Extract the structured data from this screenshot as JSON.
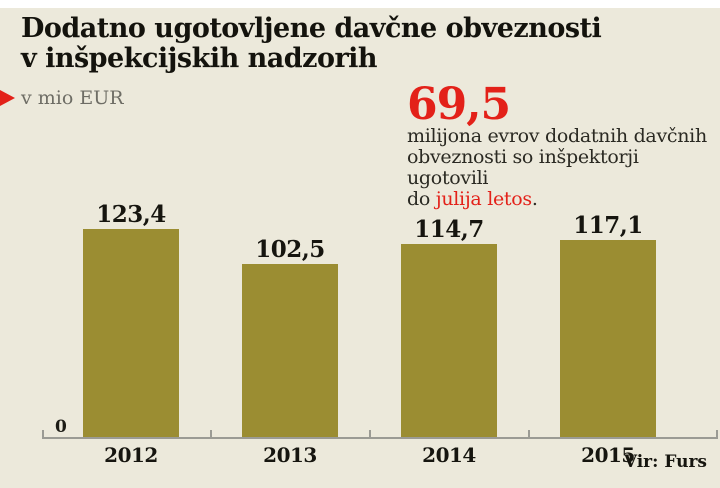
{
  "header": {
    "title_line1": "Dodatno ugotovljene davčne obveznosti",
    "title_line2": "v inšpekcijskih nadzorih",
    "unit_label": "v mio EUR"
  },
  "annotation": {
    "big_number": "69,5",
    "line1": "milijona evrov dodatnih davčnih",
    "line2": "obveznosti so inšpektorji ugotovili",
    "line3_prefix": "do ",
    "line3_highlight": "julija letos",
    "line3_suffix": "."
  },
  "chart_data": {
    "type": "bar",
    "title": "Dodatno ugotovljene davčne obveznosti v inšpekcijskih nadzorih",
    "unit": "v mio EUR",
    "categories": [
      "2012",
      "2013",
      "2014",
      "2015"
    ],
    "values": [
      123.4,
      102.5,
      114.7,
      117.1
    ],
    "value_labels": [
      "123,4",
      "102,5",
      "114,7",
      "117,1"
    ],
    "origin_label": "0",
    "xlabel": "",
    "ylabel": "v mio EUR",
    "ylim": [
      0,
      130
    ],
    "grid": false,
    "legend_position": "none",
    "annotation_value": 69.5,
    "annotation_text": "milijona evrov dodatnih davčnih obveznosti so inšpektorji ugotovili do julija letos."
  },
  "footer": {
    "source": "Vir: Furs"
  },
  "colors": {
    "background": "#ECE9DB",
    "bar_olive": "#9B8D32",
    "accent_red": "#E32119",
    "axis_gray": "#9B9B94",
    "text_dark": "#16150F",
    "text_gray": "#6E6D65"
  }
}
